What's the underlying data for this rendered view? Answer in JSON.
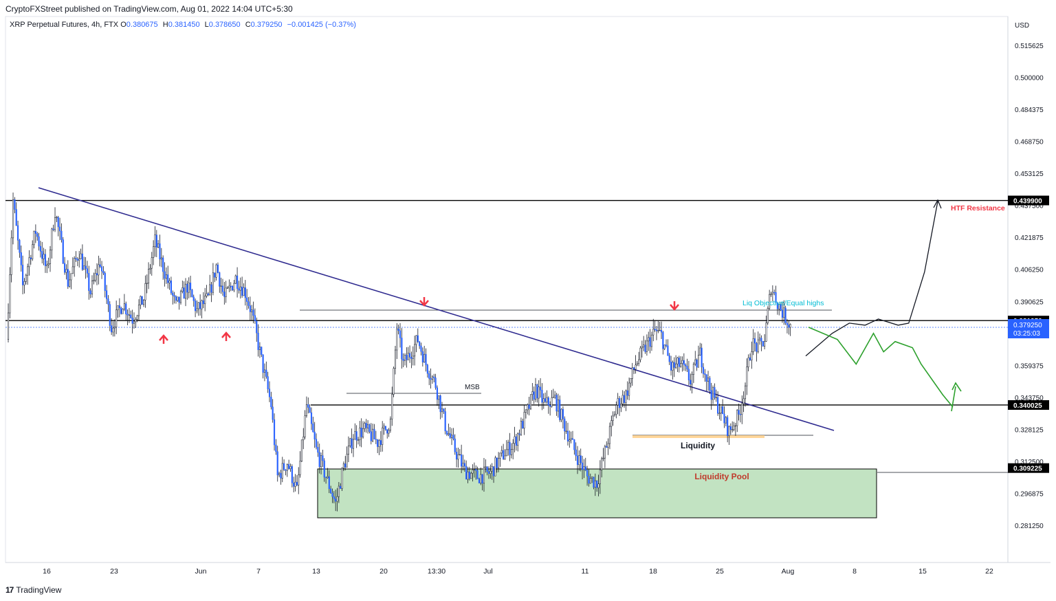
{
  "header": {
    "published": "CryptoFXStreet published on TradingView.com, Aug 01, 2022 14:04 UTC+5:30",
    "symbol": "XRP Perpetual Futures, 4h, FTX",
    "open_label": "O",
    "open": "0.380675",
    "high_label": "H",
    "high": "0.381450",
    "low_label": "L",
    "low": "0.378650",
    "close_label": "C",
    "close": "0.379250",
    "change": "−0.001425 (−0.37%)"
  },
  "footer": {
    "brand": "TradingView",
    "brand_mark": "17"
  },
  "colors": {
    "up": "#ffffff",
    "down": "#2962ff",
    "wick": "#131722",
    "trendline": "#2e2a8f",
    "level": "#000000",
    "zone": "#c2e3c2",
    "projection_down": "#2ca02c",
    "projection_up": "#131722",
    "arrow": "#f23645",
    "resistance_text": "#f23645",
    "liq_text": "#00bcd4",
    "price_badge": "#2962ff"
  },
  "chart_data": {
    "type": "candlestick",
    "title": "XRP Perpetual Futures, 4h, FTX",
    "currency": "USD",
    "y_ticks": [
      "0.515625",
      "0.500000",
      "0.484375",
      "0.468750",
      "0.453125",
      "0.437500",
      "0.421875",
      "0.406250",
      "0.390625",
      "0.375000",
      "0.359375",
      "0.343750",
      "0.328125",
      "0.312500",
      "0.296875",
      "0.281250"
    ],
    "x_ticks": [
      "16",
      "23",
      "Jun",
      "7",
      "13",
      "20",
      "13:30",
      "Jul",
      "11",
      "18",
      "25",
      "Aug",
      "8",
      "15",
      "22"
    ],
    "ylim": [
      0.272,
      0.528
    ],
    "price_path": [
      [
        0,
        0.372
      ],
      [
        4,
        0.44
      ],
      [
        10,
        0.398
      ],
      [
        18,
        0.425
      ],
      [
        25,
        0.405
      ],
      [
        30,
        0.435
      ],
      [
        38,
        0.4
      ],
      [
        45,
        0.415
      ],
      [
        52,
        0.395
      ],
      [
        58,
        0.41
      ],
      [
        65,
        0.378
      ],
      [
        72,
        0.39
      ],
      [
        78,
        0.382
      ],
      [
        85,
        0.392
      ],
      [
        92,
        0.42
      ],
      [
        98,
        0.405
      ],
      [
        105,
        0.388
      ],
      [
        112,
        0.398
      ],
      [
        118,
        0.386
      ],
      [
        125,
        0.392
      ],
      [
        130,
        0.408
      ],
      [
        135,
        0.392
      ],
      [
        142,
        0.402
      ],
      [
        148,
        0.395
      ],
      [
        152,
        0.385
      ],
      [
        158,
        0.362
      ],
      [
        164,
        0.34
      ],
      [
        168,
        0.305
      ],
      [
        174,
        0.312
      ],
      [
        180,
        0.298
      ],
      [
        186,
        0.34
      ],
      [
        192,
        0.318
      ],
      [
        198,
        0.305
      ],
      [
        204,
        0.292
      ],
      [
        209,
        0.31
      ],
      [
        215,
        0.325
      ],
      [
        222,
        0.328
      ],
      [
        230,
        0.322
      ],
      [
        238,
        0.332
      ],
      [
        242,
        0.378
      ],
      [
        246,
        0.36
      ],
      [
        250,
        0.365
      ],
      [
        255,
        0.372
      ],
      [
        260,
        0.36
      ],
      [
        266,
        0.35
      ],
      [
        272,
        0.33
      ],
      [
        278,
        0.318
      ],
      [
        284,
        0.308
      ],
      [
        292,
        0.305
      ],
      [
        300,
        0.307
      ],
      [
        308,
        0.316
      ],
      [
        315,
        0.322
      ],
      [
        322,
        0.335
      ],
      [
        328,
        0.348
      ],
      [
        334,
        0.34
      ],
      [
        340,
        0.343
      ],
      [
        346,
        0.33
      ],
      [
        352,
        0.318
      ],
      [
        360,
        0.305
      ],
      [
        366,
        0.302
      ],
      [
        372,
        0.32
      ],
      [
        378,
        0.34
      ],
      [
        384,
        0.345
      ],
      [
        390,
        0.36
      ],
      [
        396,
        0.368
      ],
      [
        402,
        0.376
      ],
      [
        406,
        0.374
      ],
      [
        412,
        0.358
      ],
      [
        418,
        0.36
      ],
      [
        424,
        0.352
      ],
      [
        430,
        0.365
      ],
      [
        436,
        0.348
      ],
      [
        442,
        0.338
      ],
      [
        448,
        0.327
      ],
      [
        454,
        0.335
      ],
      [
        458,
        0.35
      ],
      [
        462,
        0.37
      ],
      [
        466,
        0.368
      ],
      [
        470,
        0.372
      ],
      [
        474,
        0.398
      ],
      [
        478,
        0.39
      ],
      [
        482,
        0.384
      ],
      [
        486,
        0.379
      ]
    ],
    "levels": [
      {
        "label": "0.439900",
        "value": 0.4399
      },
      {
        "label": "0.381250",
        "value": 0.38125
      },
      {
        "label": "0.340025",
        "value": 0.340025
      },
      {
        "label": "0.309225",
        "value": 0.309225
      }
    ],
    "current_price": {
      "label": "0.379250",
      "value": 0.37925,
      "countdown": "03:25:03"
    },
    "annotations": {
      "htf_resistance": "HTF Resistance",
      "equal_highs": "Liq Objective/Equal highs",
      "msb": "MSB",
      "liquidity": "Liquidity",
      "liquidity_pool": "Liquidity Pool"
    },
    "zones": [
      {
        "name": "Liquidity Pool",
        "y_top": 0.3098,
        "y_bottom": 0.2855
      }
    ],
    "projections": {
      "bearish_path": [
        [
          0.378,
          0
        ],
        [
          0.372,
          0.2
        ],
        [
          0.36,
          0.33
        ],
        [
          0.375,
          0.45
        ],
        [
          0.366,
          0.52
        ],
        [
          0.371,
          0.6
        ],
        [
          0.368,
          0.72
        ],
        [
          0.36,
          0.78
        ],
        [
          0.345,
          0.93
        ],
        [
          0.339,
          1.0
        ]
      ],
      "bullish_path": [
        [
          0.364,
          0
        ],
        [
          0.375,
          0.2
        ],
        [
          0.38,
          0.33
        ],
        [
          0.379,
          0.45
        ],
        [
          0.382,
          0.55
        ],
        [
          0.379,
          0.7
        ],
        [
          0.38,
          0.78
        ],
        [
          0.405,
          0.9
        ],
        [
          0.4395,
          1.0
        ]
      ]
    }
  }
}
